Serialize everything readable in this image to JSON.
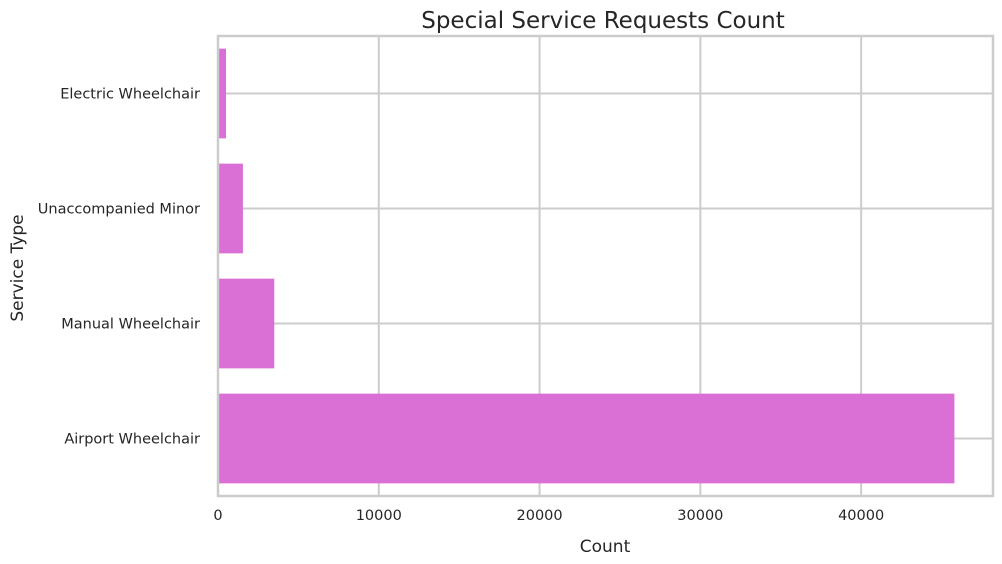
{
  "chart_data": {
    "type": "bar",
    "orientation": "horizontal",
    "title": "Special Service Requests Count",
    "xlabel": "Count",
    "ylabel": "Service Type",
    "categories": [
      "Airport Wheelchair",
      "Manual Wheelchair",
      "Unaccompanied Minor",
      "Electric Wheelchair"
    ],
    "values": [
      45800,
      3500,
      1550,
      500
    ],
    "xlim": [
      0,
      48200
    ],
    "xticks": [
      0,
      10000,
      20000,
      30000,
      40000
    ],
    "xtick_labels": [
      "0",
      "10000",
      "20000",
      "30000",
      "40000"
    ],
    "grid": true,
    "bar_color": "#da70d6",
    "grid_color": "#cccccc",
    "spine_color": "#cccccc"
  }
}
